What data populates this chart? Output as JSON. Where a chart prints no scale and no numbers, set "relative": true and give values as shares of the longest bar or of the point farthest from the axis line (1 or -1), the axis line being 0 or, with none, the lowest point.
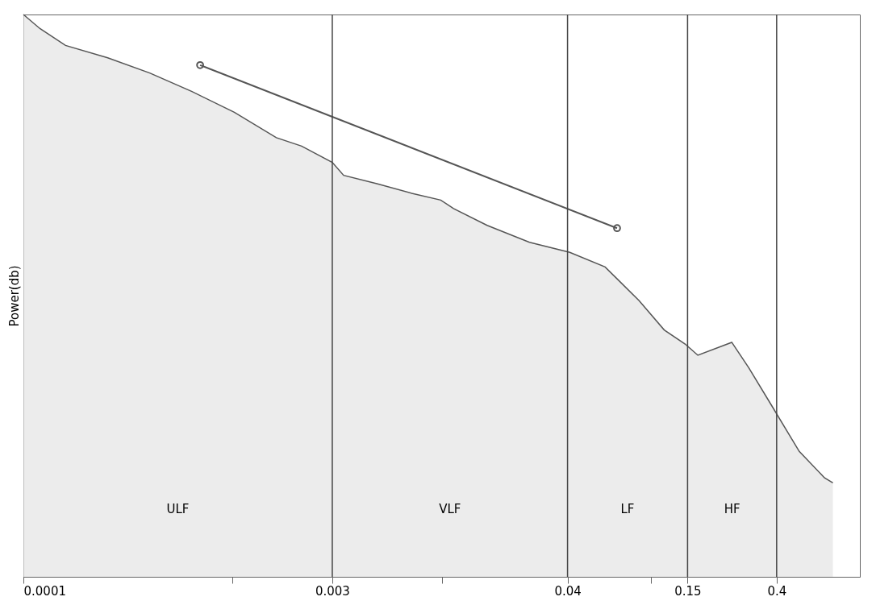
{
  "chart_data": {
    "type": "area",
    "ylabel": "Power(db)",
    "relative": true,
    "log": "x",
    "grid": false,
    "xlim": [
      0.0001,
      1
    ],
    "xticks": [
      0.0001,
      {
        "value": 0.001,
        "label": null
      },
      0.003,
      {
        "value": 0.01,
        "label": null
      },
      0.04,
      {
        "value": 0.1,
        "label": null
      },
      0.15,
      0.4
    ],
    "series": [
      {
        "color": "#e4e4e4",
        "x": [
          0.0001,
          0.00012,
          0.000159,
          0.000253,
          0.000402,
          0.00064,
          0.00102,
          0.00162,
          0.00214,
          0.003,
          0.0034,
          0.0049,
          0.0072,
          0.0099,
          0.0114,
          0.0165,
          0.0263,
          0.041,
          0.0605,
          0.088,
          0.116,
          0.146,
          0.168,
          0.244,
          0.294,
          0.388,
          0.513,
          0.678,
          0.743
        ],
        "values": [
          1.0,
          0.975,
          0.945,
          0.923,
          0.896,
          0.863,
          0.826,
          0.781,
          0.766,
          0.737,
          0.714,
          0.699,
          0.682,
          0.67,
          0.655,
          0.625,
          0.595,
          0.577,
          0.551,
          0.491,
          0.439,
          0.414,
          0.394,
          0.417,
          0.372,
          0.298,
          0.223,
          0.176,
          0.167
        ]
      },
      {
        "type": "line",
        "color": "#555555",
        "marker": "circle",
        "x": [
          0.0007,
          0.069
        ],
        "values": [
          0.91,
          0.62
        ]
      }
    ],
    "ref_lines": [
      {
        "axis": "x",
        "value": 0.003,
        "color": "#444444"
      },
      {
        "axis": "x",
        "value": 0.04,
        "color": "#444444"
      },
      {
        "axis": "x",
        "value": 0.15,
        "color": "#444444"
      },
      {
        "axis": "x",
        "value": 0.4,
        "color": "#444444"
      }
    ],
    "annotations": [
      "ULF",
      "VLF",
      "LF",
      "HF"
    ]
  }
}
